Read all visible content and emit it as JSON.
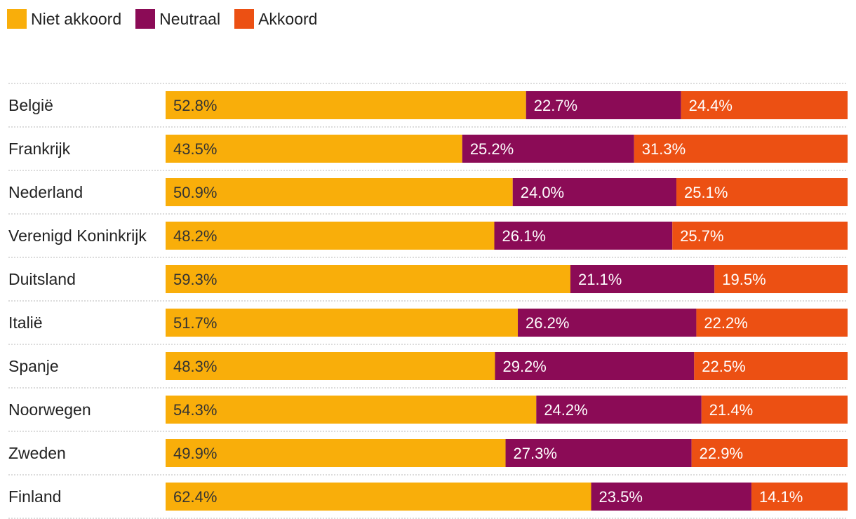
{
  "legend": [
    {
      "label": "Niet akkoord",
      "color": "#F9AE0A"
    },
    {
      "label": "Neutraal",
      "color": "#8B0B56"
    },
    {
      "label": "Akkoord",
      "color": "#EC5013"
    }
  ],
  "chart_data": {
    "type": "bar",
    "orientation": "horizontal",
    "stacked": true,
    "unit": "%",
    "categories": [
      "België",
      "Frankrijk",
      "Nederland",
      "Verenigd Koninkrijk",
      "Duitsland",
      "Italië",
      "Spanje",
      "Noorwegen",
      "Zweden",
      "Finland"
    ],
    "series": [
      {
        "name": "Niet akkoord",
        "color": "#F9AE0A",
        "label_color": "#333333",
        "values": [
          52.8,
          43.5,
          50.9,
          48.2,
          59.3,
          51.7,
          48.3,
          54.3,
          49.9,
          62.4
        ],
        "labels": [
          "52.8%",
          "43.5%",
          "50.9%",
          "48.2%",
          "59.3%",
          "51.7%",
          "48.3%",
          "54.3%",
          "49.9%",
          "62.4%"
        ]
      },
      {
        "name": "Neutraal",
        "color": "#8B0B56",
        "label_color": "#ffffff",
        "values": [
          22.7,
          25.2,
          24.0,
          26.1,
          21.1,
          26.2,
          29.2,
          24.2,
          27.3,
          23.5
        ],
        "labels": [
          "22.7%",
          "25.2%",
          "24.0%",
          "26.1%",
          "21.1%",
          "26.2%",
          "29.2%",
          "24.2%",
          "27.3%",
          "23.5%"
        ]
      },
      {
        "name": "Akkoord",
        "color": "#EC5013",
        "label_color": "#ffffff",
        "values": [
          24.4,
          31.3,
          25.1,
          25.7,
          19.5,
          22.2,
          22.5,
          21.4,
          22.9,
          14.1
        ],
        "labels": [
          "24.4%",
          "31.3%",
          "25.1%",
          "25.7%",
          "19.5%",
          "22.2%",
          "22.5%",
          "21.4%",
          "22.9%",
          "14.1%"
        ]
      }
    ],
    "xlim": [
      0,
      100
    ],
    "legend_position": "top-left"
  }
}
